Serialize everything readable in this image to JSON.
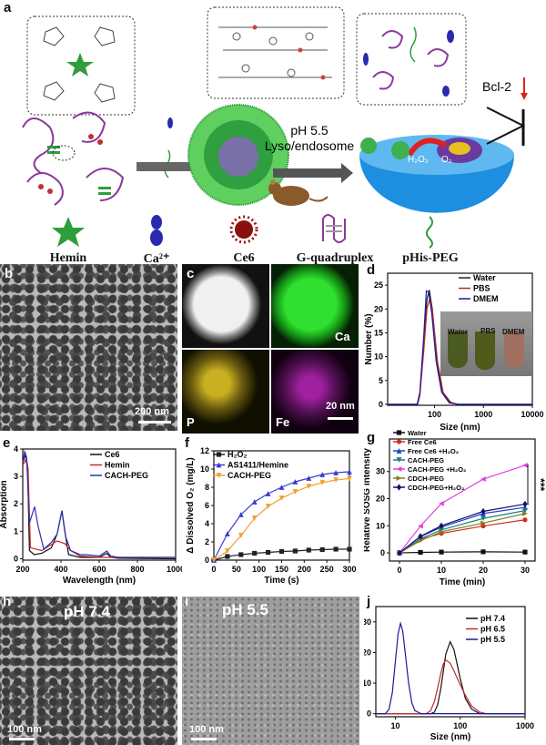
{
  "panels": {
    "a": "a",
    "b": "b",
    "c": "c",
    "d": "d",
    "e": "e",
    "f": "f",
    "g": "g",
    "h": "h",
    "i": "i",
    "j": "j"
  },
  "schematic": {
    "condition_line1": "pH 5.5",
    "condition_line2": "Lyso/endosome",
    "bcl2_label": "Bcl-2",
    "h2o2_label": "H₂O₂",
    "o2_label": "O₂",
    "legend": [
      {
        "label": "Hemin",
        "icon": "green-star-icon"
      },
      {
        "label": "Ca²⁺",
        "icon": "blue-ion-icon"
      },
      {
        "label": "Ce6",
        "icon": "red-burst-icon"
      },
      {
        "label": "G-quadruplex",
        "icon": "g-quadruplex-icon"
      },
      {
        "label": "pHis-PEG",
        "icon": "peg-coil-icon"
      }
    ]
  },
  "tem_b": {
    "scale": "200 nm"
  },
  "mapping_c": {
    "ca": "Ca",
    "p": "P",
    "fe": "Fe",
    "scale": "20 nm",
    "colors": {
      "Ca": "#22c322",
      "P": "#d8c21a",
      "Fe": "#b52bb5"
    }
  },
  "tem_h": {
    "ph": "pH 7.4",
    "scale": "100 nm"
  },
  "tem_i": {
    "ph": "pH 5.5",
    "scale": "100 nm"
  },
  "inset_d": {
    "labels": [
      "Water",
      "PBS",
      "DMEM"
    ]
  },
  "chart_data": [
    {
      "id": "d",
      "type": "line",
      "xlabel": "Size (nm)",
      "ylabel": "Number (%)",
      "xscale": "log",
      "xlim": [
        11,
        10000
      ],
      "ylim": [
        -0.2,
        27.5
      ],
      "xticks": [
        100,
        1000,
        10000
      ],
      "xticklabels": [
        "100",
        "1000",
        "10000"
      ],
      "yticks": [
        0,
        5,
        10,
        15,
        20,
        25
      ],
      "yticklabels": [
        "0",
        "5",
        "10",
        "15",
        "20",
        "25"
      ],
      "legend": "top-right",
      "series": [
        {
          "name": "Water",
          "color": "#222222",
          "points": [
            [
              11,
              0
            ],
            [
              45,
              0
            ],
            [
              50,
              2
            ],
            [
              60,
              12
            ],
            [
              70,
              22
            ],
            [
              78,
              24
            ],
            [
              90,
              20
            ],
            [
              110,
              10
            ],
            [
              140,
              3
            ],
            [
              200,
              0.5
            ],
            [
              300,
              0
            ],
            [
              10000,
              0
            ]
          ]
        },
        {
          "name": "PBS",
          "color": "#c62828",
          "points": [
            [
              11,
              0
            ],
            [
              45,
              0
            ],
            [
              50,
              1.8
            ],
            [
              60,
              11
            ],
            [
              70,
              20
            ],
            [
              80,
              22.3
            ],
            [
              92,
              19
            ],
            [
              115,
              9
            ],
            [
              150,
              2.5
            ],
            [
              220,
              0.3
            ],
            [
              300,
              0
            ],
            [
              10000,
              0
            ]
          ]
        },
        {
          "name": "DMEM",
          "color": "#1a1a9e",
          "points": [
            [
              11,
              0
            ],
            [
              44,
              0
            ],
            [
              50,
              2.5
            ],
            [
              60,
              14
            ],
            [
              68,
              23.8
            ],
            [
              76,
              23.5
            ],
            [
              88,
              19
            ],
            [
              108,
              9
            ],
            [
              140,
              2.5
            ],
            [
              200,
              0.3
            ],
            [
              300,
              0
            ],
            [
              10000,
              0
            ]
          ]
        }
      ]
    },
    {
      "id": "e",
      "type": "line",
      "xlabel": "Wavelength (nm)",
      "ylabel": "Absorption",
      "xlim": [
        200,
        1000
      ],
      "ylim": [
        -0.05,
        4
      ],
      "xticks": [
        200,
        400,
        600,
        800,
        1000
      ],
      "xticklabels": [
        "200",
        "400",
        "600",
        "800",
        "1000"
      ],
      "yticks": [
        0,
        1,
        2,
        3,
        4
      ],
      "yticklabels": [
        "0",
        "1",
        "2",
        "3",
        "4"
      ],
      "legend": "top-right",
      "series": [
        {
          "name": "Ce6",
          "color": "#111111",
          "points": [
            [
              200,
              3.5
            ],
            [
              215,
              3.8
            ],
            [
              225,
              3.4
            ],
            [
              235,
              0.3
            ],
            [
              260,
              0.15
            ],
            [
              300,
              0.2
            ],
            [
              350,
              0.4
            ],
            [
              380,
              0.9
            ],
            [
              405,
              1.75
            ],
            [
              420,
              1.0
            ],
            [
              440,
              0.15
            ],
            [
              500,
              0.05
            ],
            [
              600,
              0.05
            ],
            [
              640,
              0.2
            ],
            [
              660,
              0.05
            ],
            [
              700,
              0.02
            ],
            [
              1000,
              0
            ]
          ]
        },
        {
          "name": "Hemin",
          "color": "#c62828",
          "points": [
            [
              200,
              3.4
            ],
            [
              215,
              3.6
            ],
            [
              228,
              3.3
            ],
            [
              240,
              0.4
            ],
            [
              300,
              0.3
            ],
            [
              380,
              0.65
            ],
            [
              420,
              0.55
            ],
            [
              450,
              0.3
            ],
            [
              500,
              0.1
            ],
            [
              600,
              0.05
            ],
            [
              1000,
              0.05
            ]
          ]
        },
        {
          "name": "CACH-PEG",
          "color": "#3030b0",
          "points": [
            [
              200,
              3.5
            ],
            [
              210,
              3.9
            ],
            [
              220,
              3.7
            ],
            [
              235,
              1.3
            ],
            [
              262,
              1.9
            ],
            [
              280,
              1.2
            ],
            [
              310,
              0.35
            ],
            [
              350,
              0.6
            ],
            [
              380,
              0.9
            ],
            [
              405,
              1.75
            ],
            [
              425,
              0.8
            ],
            [
              450,
              0.3
            ],
            [
              500,
              0.15
            ],
            [
              530,
              0.15
            ],
            [
              600,
              0.1
            ],
            [
              640,
              0.28
            ],
            [
              660,
              0.1
            ],
            [
              700,
              0.05
            ],
            [
              1000,
              0.05
            ]
          ]
        }
      ]
    },
    {
      "id": "f",
      "type": "line",
      "xlabel": "Time (s)",
      "ylabel": "Δ Dissolved O₂ (mg/L)",
      "xlim": [
        0,
        300
      ],
      "ylim": [
        0,
        12
      ],
      "xticks": [
        0,
        50,
        100,
        150,
        200,
        250,
        300
      ],
      "xticklabels": [
        "0",
        "50",
        "100",
        "150",
        "200",
        "250",
        "300"
      ],
      "yticks": [
        0,
        2,
        4,
        6,
        8,
        10,
        12
      ],
      "yticklabels": [
        "0",
        "2",
        "4",
        "6",
        "8",
        "10",
        "12"
      ],
      "legend": "top-left",
      "x": [
        0,
        30,
        60,
        90,
        120,
        150,
        180,
        210,
        240,
        270,
        300
      ],
      "series": [
        {
          "name": "H₂O₂",
          "color": "#222222",
          "marker": "square",
          "values": [
            0,
            0.4,
            0.6,
            0.75,
            0.85,
            0.95,
            1.0,
            1.1,
            1.15,
            1.2,
            1.2
          ]
        },
        {
          "name": "AS1411/Hemine",
          "color": "#3a3ad0",
          "marker": "triangle",
          "values": [
            0,
            2.9,
            5.0,
            6.4,
            7.3,
            8.0,
            8.6,
            9.0,
            9.4,
            9.6,
            9.7
          ]
        },
        {
          "name": "CACH-PEG",
          "color": "#f0a030",
          "marker": "triangle-down",
          "values": [
            0,
            1.0,
            2.7,
            4.6,
            5.9,
            6.8,
            7.5,
            8.1,
            8.5,
            8.8,
            8.95
          ]
        }
      ]
    },
    {
      "id": "g",
      "type": "line",
      "xlabel": "Time (min)",
      "ylabel": "Relative SOSG intensity",
      "xlim": [
        -2.4,
        32.4
      ],
      "ylim": [
        -3,
        42
      ],
      "xticks": [
        0,
        10,
        20,
        30
      ],
      "xticklabels": [
        "0",
        "10",
        "20",
        "30"
      ],
      "yticks": [
        0,
        10,
        20,
        30
      ],
      "yticklabels": [
        "0",
        "10",
        "20",
        "30"
      ],
      "legend": "top-left",
      "annotation": "***",
      "x": [
        0,
        5,
        10,
        20,
        30
      ],
      "series": [
        {
          "name": "Water",
          "color": "#111111",
          "marker": "square",
          "values": [
            0,
            0.2,
            0.3,
            0.4,
            0.3
          ]
        },
        {
          "name": "Free Ce6",
          "color": "#d03020",
          "marker": "circle",
          "values": [
            0,
            5,
            7.2,
            9.9,
            12.2
          ]
        },
        {
          "name": "Free Ce6 +H₂O₂",
          "color": "#2040d0",
          "marker": "triangle",
          "values": [
            0,
            6,
            9.5,
            14.5,
            16.8
          ]
        },
        {
          "name": "CACH-PEG",
          "color": "#208080",
          "marker": "triangle-down",
          "values": [
            0,
            5.2,
            8.5,
            12.7,
            15.6
          ]
        },
        {
          "name": "CACH-PEG +H₂O₂",
          "color": "#e040e0",
          "marker": "triangle-left",
          "values": [
            0,
            9.9,
            18.2,
            27.2,
            32.3
          ]
        },
        {
          "name": "CDCH-PEG",
          "color": "#808020",
          "marker": "triangle-right",
          "values": [
            0,
            4.5,
            7.8,
            11,
            14.5
          ]
        },
        {
          "name": "CDCH-PEG+H₂O₂",
          "color": "#10106a",
          "marker": "diamond",
          "values": [
            0,
            6.1,
            10,
            15.3,
            18
          ]
        }
      ]
    },
    {
      "id": "j",
      "type": "line",
      "xlabel": "Size (nm)",
      "ylabel": "Number (%)",
      "xscale": "log",
      "xlim": [
        5,
        1000
      ],
      "ylim": [
        -1,
        35
      ],
      "xticks": [
        10,
        100,
        1000
      ],
      "xticklabels": [
        "10",
        "100",
        "1000"
      ],
      "yticks": [
        0,
        10,
        20,
        30
      ],
      "yticklabels": [
        "0",
        "10",
        "20",
        "30"
      ],
      "legend": "top-right",
      "series": [
        {
          "name": "pH 7.4",
          "color": "#111111",
          "points": [
            [
              5,
              0
            ],
            [
              35,
              0
            ],
            [
              40,
              0.5
            ],
            [
              45,
              3
            ],
            [
              50,
              8
            ],
            [
              55,
              14
            ],
            [
              60,
              19.5
            ],
            [
              70,
              23.5
            ],
            [
              80,
              21
            ],
            [
              90,
              16
            ],
            [
              100,
              11.5
            ],
            [
              120,
              5
            ],
            [
              150,
              1.5
            ],
            [
              200,
              0
            ],
            [
              1000,
              0
            ]
          ]
        },
        {
          "name": "pH 6.5",
          "color": "#c62828",
          "points": [
            [
              5,
              0
            ],
            [
              30,
              0
            ],
            [
              35,
              1
            ],
            [
              40,
              4
            ],
            [
              45,
              8.5
            ],
            [
              50,
              13
            ],
            [
              55,
              16.3
            ],
            [
              60,
              17.5
            ],
            [
              70,
              16.5
            ],
            [
              80,
              14
            ],
            [
              100,
              9.5
            ],
            [
              120,
              6
            ],
            [
              150,
              2.5
            ],
            [
              200,
              0.5
            ],
            [
              250,
              0
            ],
            [
              1000,
              0
            ]
          ]
        },
        {
          "name": "pH 5.5",
          "color": "#1a1a9e",
          "points": [
            [
              5,
              0
            ],
            [
              7,
              0
            ],
            [
              8,
              1.5
            ],
            [
              9,
              7
            ],
            [
              10,
              17
            ],
            [
              11,
              26
            ],
            [
              12,
              29.5
            ],
            [
              13,
              27
            ],
            [
              14,
              21
            ],
            [
              16,
              10
            ],
            [
              18,
              3.5
            ],
            [
              20,
              1
            ],
            [
              25,
              0
            ],
            [
              1000,
              0
            ]
          ]
        }
      ]
    }
  ]
}
